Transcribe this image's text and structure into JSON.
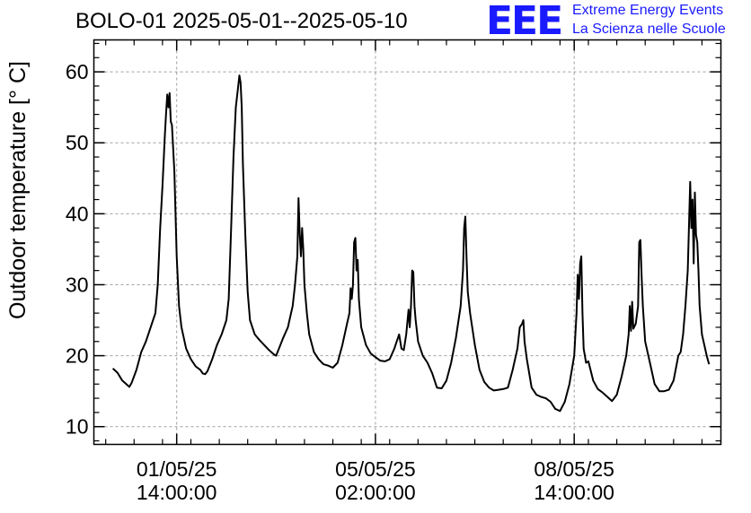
{
  "header": {
    "title": "BOLO-01 2025-05-01--2025-05-10",
    "logo_text": "EEE",
    "org_line1": "Extreme Energy Events",
    "org_line2": "La Scienza nelle Scuole"
  },
  "colors": {
    "brand": "#1a1aff",
    "line": "#000000",
    "grid": "#a0a0a0"
  },
  "chart_data": {
    "type": "line",
    "title": "BOLO-01 2025-05-01--2025-05-10",
    "xlabel": "",
    "ylabel": "Outdoor temperature [° C]",
    "x_unit": "hours since 2025-05-01 00:00",
    "xlim": [
      -21,
      244
    ],
    "ylim": [
      7.5,
      64.5
    ],
    "grid": true,
    "y_ticks": [
      10,
      20,
      30,
      40,
      50,
      60
    ],
    "x_ticks": [
      {
        "x": 14,
        "line1": "01/05/25",
        "line2": "14:00:00"
      },
      {
        "x": 98,
        "line1": "05/05/25",
        "line2": "02:00:00"
      },
      {
        "x": 182,
        "line1": "08/05/25",
        "line2": "14:00:00"
      }
    ],
    "series": [
      {
        "name": "",
        "color": "#000000",
        "points": [
          [
            -13,
            18.2
          ],
          [
            -11,
            17.6
          ],
          [
            -9,
            16.5
          ],
          [
            -7,
            15.9
          ],
          [
            -6,
            15.6
          ],
          [
            -5,
            16.2
          ],
          [
            -3,
            18
          ],
          [
            -1,
            20.5
          ],
          [
            1,
            22
          ],
          [
            3,
            24
          ],
          [
            5,
            26
          ],
          [
            6,
            30
          ],
          [
            7,
            38
          ],
          [
            8,
            44
          ],
          [
            9,
            51
          ],
          [
            9.5,
            54
          ],
          [
            10,
            56.8
          ],
          [
            10.5,
            55
          ],
          [
            11,
            57
          ],
          [
            11.5,
            53
          ],
          [
            12,
            52.5
          ],
          [
            13,
            46
          ],
          [
            14,
            34
          ],
          [
            15,
            27
          ],
          [
            16,
            24
          ],
          [
            18,
            21
          ],
          [
            20,
            19.5
          ],
          [
            22,
            18.5
          ],
          [
            24,
            18
          ],
          [
            25,
            17.5
          ],
          [
            26,
            17.4
          ],
          [
            27,
            17.8
          ],
          [
            29,
            19.5
          ],
          [
            31,
            21.5
          ],
          [
            33,
            23
          ],
          [
            35,
            25
          ],
          [
            36,
            28
          ],
          [
            37,
            38
          ],
          [
            38,
            48
          ],
          [
            39,
            55
          ],
          [
            40,
            58
          ],
          [
            40.5,
            59.5
          ],
          [
            41,
            58.5
          ],
          [
            41.5,
            55
          ],
          [
            42,
            47
          ],
          [
            43,
            37
          ],
          [
            44,
            29
          ],
          [
            45,
            25
          ],
          [
            47,
            23
          ],
          [
            49,
            22.2
          ],
          [
            51,
            21.5
          ],
          [
            53,
            20.8
          ],
          [
            55,
            20.2
          ],
          [
            56,
            20
          ],
          [
            57,
            20.8
          ],
          [
            59,
            22.5
          ],
          [
            61,
            24
          ],
          [
            62,
            25.5
          ],
          [
            63,
            27
          ],
          [
            64,
            30
          ],
          [
            65,
            34
          ],
          [
            65.5,
            42.2
          ],
          [
            66,
            37
          ],
          [
            66.5,
            34
          ],
          [
            67,
            38
          ],
          [
            67.5,
            35
          ],
          [
            68,
            30
          ],
          [
            69,
            26
          ],
          [
            70,
            23
          ],
          [
            72,
            20.5
          ],
          [
            74,
            19.5
          ],
          [
            76,
            18.8
          ],
          [
            78,
            18.6
          ],
          [
            80,
            18.3
          ],
          [
            82,
            19
          ],
          [
            84,
            21.5
          ],
          [
            86,
            24.5
          ],
          [
            87,
            26
          ],
          [
            87.5,
            29.5
          ],
          [
            88,
            28
          ],
          [
            88.5,
            30
          ],
          [
            89,
            36
          ],
          [
            89.5,
            36.6
          ],
          [
            90,
            32
          ],
          [
            90.5,
            33.5
          ],
          [
            91,
            28
          ],
          [
            92,
            24
          ],
          [
            94,
            21.5
          ],
          [
            96,
            20.3
          ],
          [
            98,
            19.8
          ],
          [
            100,
            19.3
          ],
          [
            102,
            19.2
          ],
          [
            104,
            19.5
          ],
          [
            106,
            21
          ],
          [
            107,
            22
          ],
          [
            108,
            23
          ],
          [
            109,
            21
          ],
          [
            110,
            20.8
          ],
          [
            111,
            23
          ],
          [
            112,
            26.5
          ],
          [
            112.5,
            24
          ],
          [
            113,
            27
          ],
          [
            113.5,
            32
          ],
          [
            114,
            31.8
          ],
          [
            114.5,
            27
          ],
          [
            115,
            25
          ],
          [
            116,
            22
          ],
          [
            118,
            20
          ],
          [
            120,
            19
          ],
          [
            122,
            17.5
          ],
          [
            124,
            15.5
          ],
          [
            126,
            15.4
          ],
          [
            128,
            16.5
          ],
          [
            130,
            19
          ],
          [
            132,
            22.5
          ],
          [
            134,
            27
          ],
          [
            135,
            32
          ],
          [
            135.5,
            38
          ],
          [
            136,
            39.6
          ],
          [
            136.5,
            34
          ],
          [
            137,
            29
          ],
          [
            138,
            26
          ],
          [
            140,
            21.5
          ],
          [
            142,
            18
          ],
          [
            144,
            16.3
          ],
          [
            146,
            15.5
          ],
          [
            148,
            15.1
          ],
          [
            150,
            15.2
          ],
          [
            152,
            15.3
          ],
          [
            154,
            15.5
          ],
          [
            156,
            18
          ],
          [
            158,
            21
          ],
          [
            159,
            24
          ],
          [
            160,
            24.5
          ],
          [
            160.5,
            25
          ],
          [
            161,
            22
          ],
          [
            162,
            19.5
          ],
          [
            164,
            15.5
          ],
          [
            166,
            14.5
          ],
          [
            168,
            14.2
          ],
          [
            170,
            14
          ],
          [
            172,
            13.5
          ],
          [
            174,
            12.5
          ],
          [
            176,
            12.2
          ],
          [
            178,
            13.5
          ],
          [
            180,
            16
          ],
          [
            182,
            20
          ],
          [
            183,
            26
          ],
          [
            183.5,
            31.4
          ],
          [
            184,
            28
          ],
          [
            184.5,
            33
          ],
          [
            185,
            34
          ],
          [
            185.5,
            26
          ],
          [
            186,
            21
          ],
          [
            187,
            19
          ],
          [
            188,
            19.2
          ],
          [
            190,
            16.5
          ],
          [
            192,
            15.3
          ],
          [
            194,
            14.8
          ],
          [
            196,
            14.2
          ],
          [
            198,
            13.6
          ],
          [
            200,
            14.5
          ],
          [
            202,
            17
          ],
          [
            204,
            20
          ],
          [
            205,
            23
          ],
          [
            205.5,
            27
          ],
          [
            206,
            23.5
          ],
          [
            206.5,
            27.6
          ],
          [
            207,
            23.8
          ],
          [
            208,
            24.5
          ],
          [
            209,
            27
          ],
          [
            209.5,
            36
          ],
          [
            210,
            36.3
          ],
          [
            210.5,
            31
          ],
          [
            211,
            27
          ],
          [
            212,
            22
          ],
          [
            214,
            19
          ],
          [
            216,
            16
          ],
          [
            218,
            15
          ],
          [
            220,
            15
          ],
          [
            222,
            15.2
          ],
          [
            224,
            16.5
          ],
          [
            226,
            20
          ],
          [
            227,
            20.5
          ],
          [
            228,
            23
          ],
          [
            229,
            27
          ],
          [
            230,
            32
          ],
          [
            230.5,
            38
          ],
          [
            231,
            44.5
          ],
          [
            231.5,
            38
          ],
          [
            232,
            42
          ],
          [
            232.5,
            33
          ],
          [
            233,
            43
          ],
          [
            233.5,
            37
          ],
          [
            234,
            36
          ],
          [
            234.5,
            32
          ],
          [
            235,
            27
          ],
          [
            236,
            23
          ],
          [
            238,
            20
          ],
          [
            239,
            18.8
          ]
        ]
      }
    ]
  }
}
